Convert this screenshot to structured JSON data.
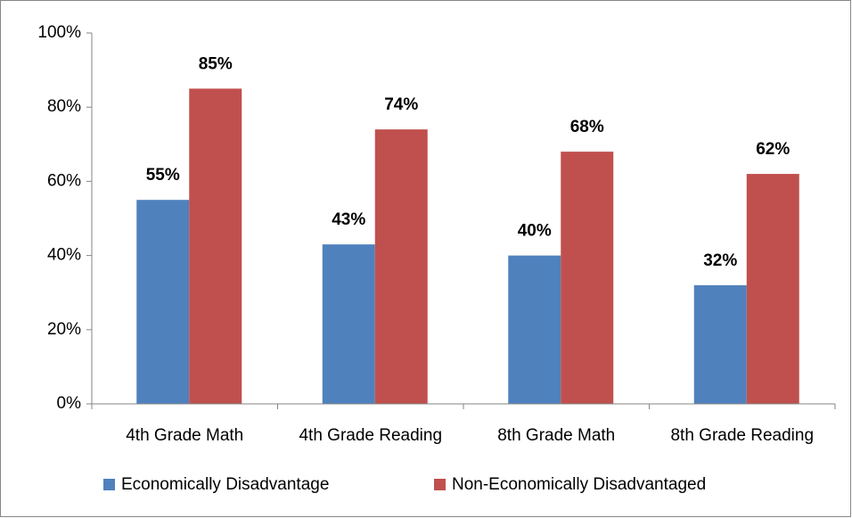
{
  "chart_data": {
    "type": "bar",
    "categories": [
      "4th Grade Math",
      "4th Grade Reading",
      "8th Grade Math",
      "8th Grade Reading"
    ],
    "series": [
      {
        "name": "Economically Disadvantage",
        "color": "#4f81bd",
        "values": [
          55,
          43,
          40,
          32
        ],
        "value_labels": [
          "55%",
          "43%",
          "40%",
          "32%"
        ]
      },
      {
        "name": "Non-Economically Disadvantaged",
        "color": "#c0504d",
        "values": [
          85,
          74,
          68,
          62
        ],
        "value_labels": [
          "85%",
          "74%",
          "68%",
          "62%"
        ]
      }
    ],
    "ylim": [
      0,
      100
    ],
    "yticks": [
      {
        "value": 0,
        "label": "0%"
      },
      {
        "value": 20,
        "label": "20%"
      },
      {
        "value": 40,
        "label": "40%"
      },
      {
        "value": 60,
        "label": "60%"
      },
      {
        "value": 80,
        "label": "80%"
      },
      {
        "value": 100,
        "label": "100%"
      }
    ],
    "grid": false,
    "legend": "bottom"
  }
}
